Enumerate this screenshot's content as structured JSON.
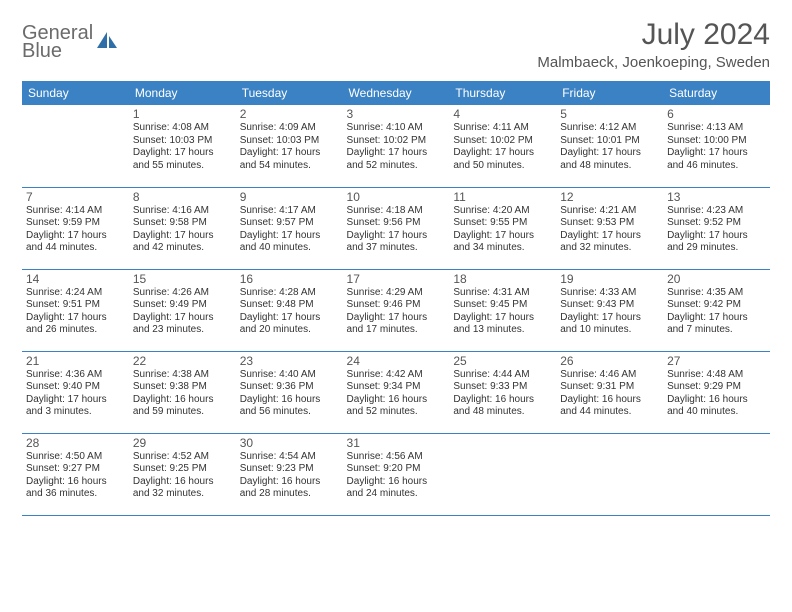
{
  "brand": {
    "word1": "General",
    "word2": "Blue"
  },
  "title": "July 2024",
  "location": "Malmbaeck, Joenkoeping, Sweden",
  "colors": {
    "header_bg": "#3b82c4",
    "header_text": "#ffffff",
    "rule": "#3b82c4",
    "body_text": "#333333",
    "muted_text": "#555555",
    "page_bg": "#ffffff"
  },
  "day_headers": [
    "Sunday",
    "Monday",
    "Tuesday",
    "Wednesday",
    "Thursday",
    "Friday",
    "Saturday"
  ],
  "weeks": [
    [
      null,
      {
        "n": "1",
        "sr": "4:08 AM",
        "ss": "10:03 PM",
        "dl": "17 hours and 55 minutes."
      },
      {
        "n": "2",
        "sr": "4:09 AM",
        "ss": "10:03 PM",
        "dl": "17 hours and 54 minutes."
      },
      {
        "n": "3",
        "sr": "4:10 AM",
        "ss": "10:02 PM",
        "dl": "17 hours and 52 minutes."
      },
      {
        "n": "4",
        "sr": "4:11 AM",
        "ss": "10:02 PM",
        "dl": "17 hours and 50 minutes."
      },
      {
        "n": "5",
        "sr": "4:12 AM",
        "ss": "10:01 PM",
        "dl": "17 hours and 48 minutes."
      },
      {
        "n": "6",
        "sr": "4:13 AM",
        "ss": "10:00 PM",
        "dl": "17 hours and 46 minutes."
      }
    ],
    [
      {
        "n": "7",
        "sr": "4:14 AM",
        "ss": "9:59 PM",
        "dl": "17 hours and 44 minutes."
      },
      {
        "n": "8",
        "sr": "4:16 AM",
        "ss": "9:58 PM",
        "dl": "17 hours and 42 minutes."
      },
      {
        "n": "9",
        "sr": "4:17 AM",
        "ss": "9:57 PM",
        "dl": "17 hours and 40 minutes."
      },
      {
        "n": "10",
        "sr": "4:18 AM",
        "ss": "9:56 PM",
        "dl": "17 hours and 37 minutes."
      },
      {
        "n": "11",
        "sr": "4:20 AM",
        "ss": "9:55 PM",
        "dl": "17 hours and 34 minutes."
      },
      {
        "n": "12",
        "sr": "4:21 AM",
        "ss": "9:53 PM",
        "dl": "17 hours and 32 minutes."
      },
      {
        "n": "13",
        "sr": "4:23 AM",
        "ss": "9:52 PM",
        "dl": "17 hours and 29 minutes."
      }
    ],
    [
      {
        "n": "14",
        "sr": "4:24 AM",
        "ss": "9:51 PM",
        "dl": "17 hours and 26 minutes."
      },
      {
        "n": "15",
        "sr": "4:26 AM",
        "ss": "9:49 PM",
        "dl": "17 hours and 23 minutes."
      },
      {
        "n": "16",
        "sr": "4:28 AM",
        "ss": "9:48 PM",
        "dl": "17 hours and 20 minutes."
      },
      {
        "n": "17",
        "sr": "4:29 AM",
        "ss": "9:46 PM",
        "dl": "17 hours and 17 minutes."
      },
      {
        "n": "18",
        "sr": "4:31 AM",
        "ss": "9:45 PM",
        "dl": "17 hours and 13 minutes."
      },
      {
        "n": "19",
        "sr": "4:33 AM",
        "ss": "9:43 PM",
        "dl": "17 hours and 10 minutes."
      },
      {
        "n": "20",
        "sr": "4:35 AM",
        "ss": "9:42 PM",
        "dl": "17 hours and 7 minutes."
      }
    ],
    [
      {
        "n": "21",
        "sr": "4:36 AM",
        "ss": "9:40 PM",
        "dl": "17 hours and 3 minutes."
      },
      {
        "n": "22",
        "sr": "4:38 AM",
        "ss": "9:38 PM",
        "dl": "16 hours and 59 minutes."
      },
      {
        "n": "23",
        "sr": "4:40 AM",
        "ss": "9:36 PM",
        "dl": "16 hours and 56 minutes."
      },
      {
        "n": "24",
        "sr": "4:42 AM",
        "ss": "9:34 PM",
        "dl": "16 hours and 52 minutes."
      },
      {
        "n": "25",
        "sr": "4:44 AM",
        "ss": "9:33 PM",
        "dl": "16 hours and 48 minutes."
      },
      {
        "n": "26",
        "sr": "4:46 AM",
        "ss": "9:31 PM",
        "dl": "16 hours and 44 minutes."
      },
      {
        "n": "27",
        "sr": "4:48 AM",
        "ss": "9:29 PM",
        "dl": "16 hours and 40 minutes."
      }
    ],
    [
      {
        "n": "28",
        "sr": "4:50 AM",
        "ss": "9:27 PM",
        "dl": "16 hours and 36 minutes."
      },
      {
        "n": "29",
        "sr": "4:52 AM",
        "ss": "9:25 PM",
        "dl": "16 hours and 32 minutes."
      },
      {
        "n": "30",
        "sr": "4:54 AM",
        "ss": "9:23 PM",
        "dl": "16 hours and 28 minutes."
      },
      {
        "n": "31",
        "sr": "4:56 AM",
        "ss": "9:20 PM",
        "dl": "16 hours and 24 minutes."
      },
      null,
      null,
      null
    ]
  ],
  "labels": {
    "sunrise": "Sunrise: ",
    "sunset": "Sunset: ",
    "daylight": "Daylight: "
  }
}
